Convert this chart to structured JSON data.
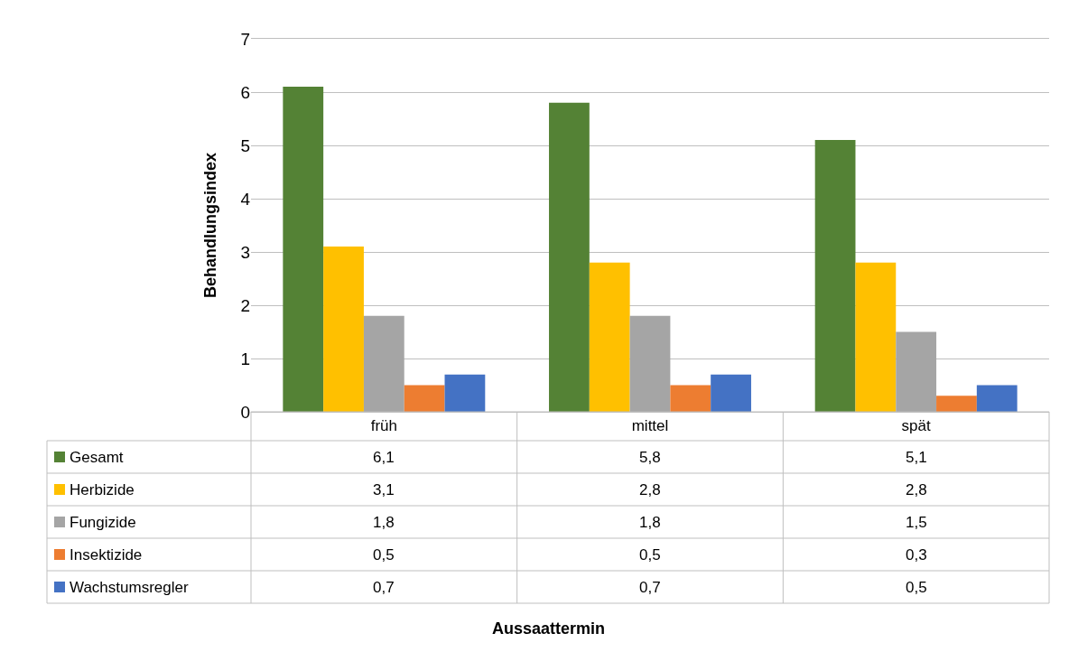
{
  "chart_data": {
    "type": "bar",
    "annotations": [
      "Aussaattermin"
    ],
    "ylabel": "Behandlungsindex",
    "categories": [
      "früh",
      "mittel",
      "spät"
    ],
    "series": [
      {
        "name": "Gesamt",
        "color": "#548235",
        "values": [
          6.1,
          5.8,
          5.1
        ],
        "value_labels": [
          "6,1",
          "5,8",
          "5,1"
        ]
      },
      {
        "name": "Herbizide",
        "color": "#ffc000",
        "values": [
          3.1,
          2.8,
          2.8
        ],
        "value_labels": [
          "3,1",
          "2,8",
          "2,8"
        ]
      },
      {
        "name": "Fungizide",
        "color": "#a5a5a5",
        "values": [
          1.8,
          1.8,
          1.5
        ],
        "value_labels": [
          "1,8",
          "1,8",
          "1,5"
        ]
      },
      {
        "name": "Insektizide",
        "color": "#ed7d31",
        "values": [
          0.5,
          0.5,
          0.3
        ],
        "value_labels": [
          "0,5",
          "0,5",
          "0,3"
        ]
      },
      {
        "name": "Wachstumsregler",
        "color": "#4472c4",
        "values": [
          0.7,
          0.7,
          0.5
        ],
        "value_labels": [
          "0,7",
          "0,7",
          "0,5"
        ]
      }
    ],
    "ylim": [
      0,
      7
    ],
    "yticks": [
      0,
      1,
      2,
      3,
      4,
      5,
      6,
      7
    ],
    "grid": "y",
    "legend": "bottom"
  }
}
